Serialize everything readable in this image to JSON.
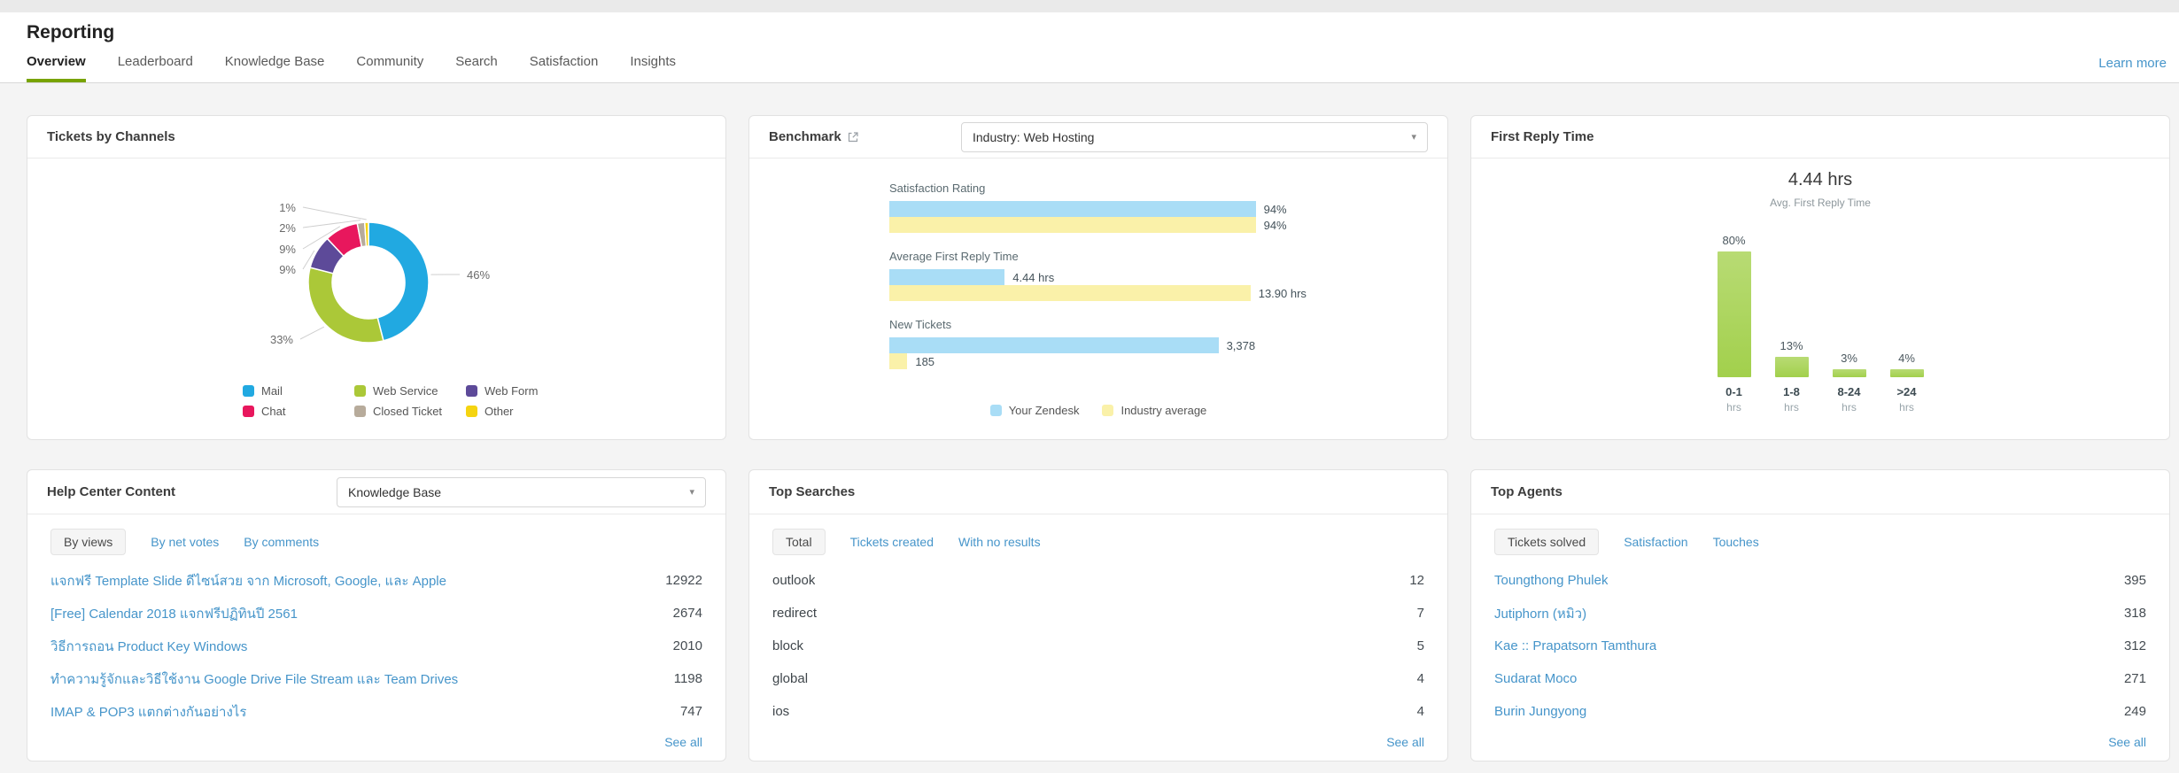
{
  "theme": {
    "link_color": "#4695ca",
    "active_tab_color": "#78a300",
    "page_background": "#f4f4f4"
  },
  "header": {
    "title": "Reporting",
    "learn_more": "Learn more",
    "tabs": [
      {
        "label": "Overview",
        "active": true
      },
      {
        "label": "Leaderboard"
      },
      {
        "label": "Knowledge Base"
      },
      {
        "label": "Community"
      },
      {
        "label": "Search"
      },
      {
        "label": "Satisfaction"
      },
      {
        "label": "Insights"
      }
    ]
  },
  "tickets_by_channels": {
    "title": "Tickets by Channels"
  },
  "benchmark": {
    "title": "Benchmark",
    "dropdown_value": "Industry: Web Hosting"
  },
  "first_reply_time": {
    "title": "First Reply Time",
    "headline": "4.44 hrs",
    "subtitle": "Avg. First Reply Time"
  },
  "help_center": {
    "title": "Help Center Content",
    "dropdown_value": "Knowledge Base",
    "tabs": [
      {
        "label": "By views",
        "active": true
      },
      {
        "label": "By net votes"
      },
      {
        "label": "By comments"
      }
    ],
    "link_items": true,
    "items": [
      {
        "label": "แจกฟรี Template Slide ดีไซน์สวย จาก Microsoft, Google, และ Apple",
        "value": "12922"
      },
      {
        "label": "[Free] Calendar 2018 แจกฟรีปฏิทินปี 2561",
        "value": "2674"
      },
      {
        "label": "วิธีการถอน Product Key Windows",
        "value": "2010"
      },
      {
        "label": "ทำความรู้จักและวิธีใช้งาน Google Drive File Stream และ Team Drives",
        "value": "1198"
      },
      {
        "label": "IMAP & POP3 แตกต่างกันอย่างไร",
        "value": "747"
      }
    ],
    "see_all": "See all"
  },
  "top_searches": {
    "title": "Top Searches",
    "tabs": [
      {
        "label": "Total",
        "active": true
      },
      {
        "label": "Tickets created"
      },
      {
        "label": "With no results"
      }
    ],
    "link_items": false,
    "items": [
      {
        "label": "outlook",
        "value": "12"
      },
      {
        "label": "redirect",
        "value": "7"
      },
      {
        "label": "block",
        "value": "5"
      },
      {
        "label": "global",
        "value": "4"
      },
      {
        "label": "ios",
        "value": "4"
      }
    ],
    "see_all": "See all"
  },
  "top_agents": {
    "title": "Top Agents",
    "tabs": [
      {
        "label": "Tickets solved",
        "active": true
      },
      {
        "label": "Satisfaction"
      },
      {
        "label": "Touches"
      }
    ],
    "link_items": true,
    "items": [
      {
        "label": "Toungthong Phulek",
        "value": "395"
      },
      {
        "label": "Jutiphorn (หมิว)",
        "value": "318"
      },
      {
        "label": "Kae :: Prapatsorn Tamthura",
        "value": "312"
      },
      {
        "label": "Sudarat Moco",
        "value": "271"
      },
      {
        "label": "Burin Jungyong",
        "value": "249"
      }
    ],
    "see_all": "See all"
  },
  "chart_data": [
    {
      "id": "tickets-by-channels",
      "type": "pie",
      "donut": true,
      "title": "Tickets by Channels",
      "labels": [
        "Mail",
        "Web Service",
        "Web Form",
        "Chat",
        "Closed Ticket",
        "Other"
      ],
      "values": [
        46,
        33,
        9,
        9,
        2,
        1
      ],
      "unit": "%",
      "colors": [
        "#21a9e1",
        "#abc838",
        "#5d4a99",
        "#e8175d",
        "#b7ab9b",
        "#f5d410"
      ],
      "legend_position": "bottom"
    },
    {
      "id": "benchmark",
      "type": "bar",
      "orientation": "horizontal",
      "title": "Benchmark — Industry: Web Hosting",
      "categories": [
        "Satisfaction Rating",
        "Average First Reply Time",
        "New Tickets"
      ],
      "series": [
        {
          "name": "Your Zendesk",
          "color": "#a9ddf6",
          "values": [
            94,
            4.44,
            3378
          ],
          "display": [
            "94%",
            "4.44 hrs",
            "3,378"
          ]
        },
        {
          "name": "Industry average",
          "color": "#faf1a9",
          "values": [
            94,
            13.9,
            185
          ],
          "display": [
            "94%",
            "13.90 hrs",
            "185"
          ]
        }
      ],
      "legend_position": "bottom"
    },
    {
      "id": "first-reply-time",
      "type": "bar",
      "orientation": "vertical",
      "title": "First Reply Time",
      "categories": [
        "0-1",
        "1-8",
        "8-24",
        ">24"
      ],
      "category_unit": "hrs",
      "values": [
        80,
        13,
        3,
        4
      ],
      "value_labels": [
        "80%",
        "13%",
        "3%",
        "4%"
      ],
      "unit": "%",
      "ylim": [
        0,
        80
      ],
      "color": "#abd45f"
    }
  ]
}
